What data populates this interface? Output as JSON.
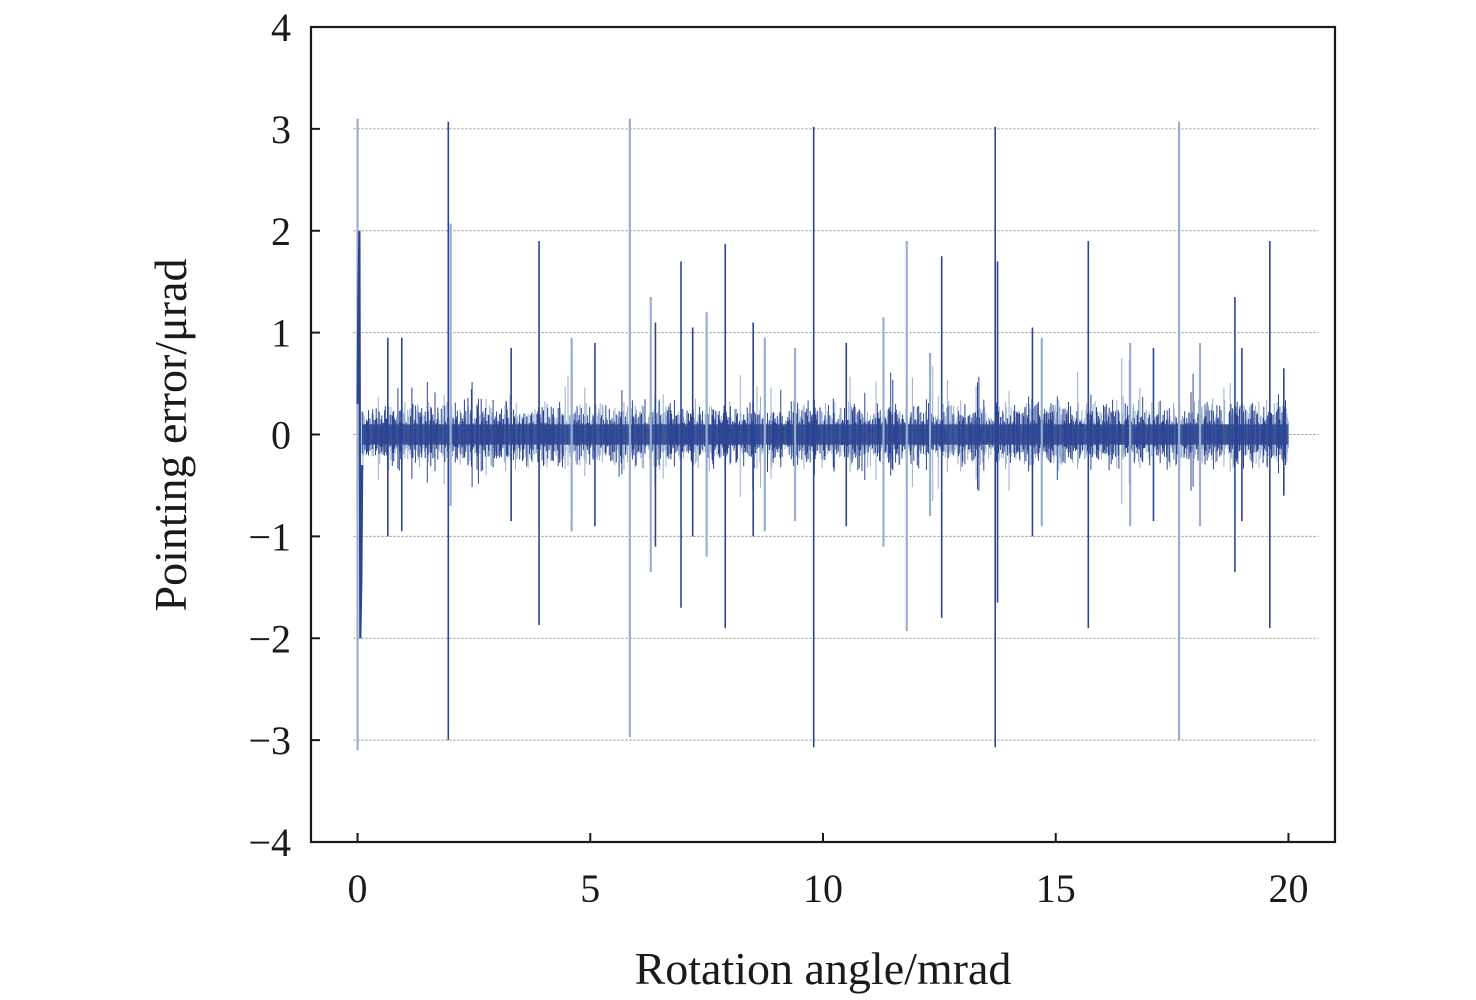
{
  "chart_data": {
    "type": "line",
    "title": "",
    "xlabel": "Rotation angle/mrad",
    "ylabel": "Pointing error/μrad",
    "xlim": [
      -1,
      21
    ],
    "ylim": [
      -4,
      4
    ],
    "x_ticks": [
      0,
      5,
      10,
      15,
      20
    ],
    "x_tick_labels": [
      "0",
      "5",
      "10",
      "15",
      "20"
    ],
    "y_ticks": [
      -4,
      -3,
      -2,
      -1,
      0,
      1,
      2,
      3,
      4
    ],
    "y_tick_labels": [
      "−4",
      "−3",
      "−2",
      "−1",
      "0",
      "1",
      "2",
      "3",
      "4"
    ],
    "grid": "horizontal dotted at y = −3, −2, −1, 0, 1, 2, 3",
    "legend": "none",
    "colors": {
      "dark": "#2c4592",
      "light": "#9aaed0",
      "axis": "#1a1a1a"
    },
    "noise": {
      "x_start": 0.1,
      "x_end": 20.0,
      "band_amplitude": 0.25
    },
    "transient": [
      {
        "x": 0.0,
        "y": 0.3
      },
      {
        "x": 0.02,
        "y": 1.45
      },
      {
        "x": 0.04,
        "y": 2.0
      },
      {
        "x": 0.06,
        "y": -2.0
      },
      {
        "x": 0.08,
        "y": -1.45
      },
      {
        "x": 0.1,
        "y": -0.3
      }
    ],
    "spikes": [
      {
        "x": 0.0,
        "y_max": 3.1,
        "y_min": -3.1,
        "tone": "light"
      },
      {
        "x": 1.95,
        "y_max": 3.07,
        "y_min": -3.0,
        "tone": "dark"
      },
      {
        "x": 5.85,
        "y_max": 3.1,
        "y_min": -2.97,
        "tone": "light"
      },
      {
        "x": 9.8,
        "y_max": 3.02,
        "y_min": -3.07,
        "tone": "dark"
      },
      {
        "x": 13.7,
        "y_max": 3.02,
        "y_min": -3.07,
        "tone": "dark"
      },
      {
        "x": 17.65,
        "y_max": 3.07,
        "y_min": -3.0,
        "tone": "light"
      },
      {
        "x": 2.0,
        "y_max": 2.07,
        "y_min": -0.7,
        "tone": "light"
      },
      {
        "x": 3.9,
        "y_max": 1.9,
        "y_min": -1.87,
        "tone": "dark"
      },
      {
        "x": 7.9,
        "y_max": 1.87,
        "y_min": -1.9,
        "tone": "dark"
      },
      {
        "x": 11.8,
        "y_max": 1.9,
        "y_min": -1.93,
        "tone": "light"
      },
      {
        "x": 12.55,
        "y_max": 1.75,
        "y_min": -1.8,
        "tone": "dark"
      },
      {
        "x": 15.7,
        "y_max": 1.9,
        "y_min": -1.9,
        "tone": "dark"
      },
      {
        "x": 19.6,
        "y_max": 1.9,
        "y_min": -1.9,
        "tone": "dark"
      },
      {
        "x": 6.95,
        "y_max": 1.7,
        "y_min": -1.7,
        "tone": "dark"
      },
      {
        "x": 6.3,
        "y_max": 1.35,
        "y_min": -1.35,
        "tone": "light"
      },
      {
        "x": 6.4,
        "y_max": 1.1,
        "y_min": -1.1,
        "tone": "dark"
      },
      {
        "x": 13.75,
        "y_max": 1.7,
        "y_min": -1.65,
        "tone": "dark"
      },
      {
        "x": 18.85,
        "y_max": 1.35,
        "y_min": -1.35,
        "tone": "dark"
      },
      {
        "x": 11.3,
        "y_max": 1.15,
        "y_min": -1.1,
        "tone": "light"
      },
      {
        "x": 7.2,
        "y_max": 1.05,
        "y_min": -1.0,
        "tone": "dark"
      },
      {
        "x": 7.5,
        "y_max": 1.2,
        "y_min": -1.2,
        "tone": "light"
      },
      {
        "x": 8.5,
        "y_max": 1.1,
        "y_min": -1.0,
        "tone": "dark"
      },
      {
        "x": 8.75,
        "y_max": 0.95,
        "y_min": -0.95,
        "tone": "light"
      },
      {
        "x": 14.5,
        "y_max": 1.05,
        "y_min": -1.0,
        "tone": "dark"
      },
      {
        "x": 14.7,
        "y_max": 0.95,
        "y_min": -0.9,
        "tone": "light"
      },
      {
        "x": 0.65,
        "y_max": 0.95,
        "y_min": -1.0,
        "tone": "dark"
      },
      {
        "x": 0.95,
        "y_max": 0.95,
        "y_min": -0.95,
        "tone": "dark"
      },
      {
        "x": 4.6,
        "y_max": 0.95,
        "y_min": -0.95,
        "tone": "light"
      },
      {
        "x": 5.1,
        "y_max": 0.9,
        "y_min": -0.9,
        "tone": "dark"
      },
      {
        "x": 3.3,
        "y_max": 0.85,
        "y_min": -0.85,
        "tone": "dark"
      },
      {
        "x": 9.4,
        "y_max": 0.85,
        "y_min": -0.85,
        "tone": "light"
      },
      {
        "x": 10.5,
        "y_max": 0.9,
        "y_min": -0.9,
        "tone": "dark"
      },
      {
        "x": 16.6,
        "y_max": 0.9,
        "y_min": -0.9,
        "tone": "light"
      },
      {
        "x": 17.1,
        "y_max": 0.85,
        "y_min": -0.85,
        "tone": "dark"
      },
      {
        "x": 18.1,
        "y_max": 0.9,
        "y_min": -0.9,
        "tone": "light"
      },
      {
        "x": 19.0,
        "y_max": 0.85,
        "y_min": -0.85,
        "tone": "dark"
      },
      {
        "x": 19.9,
        "y_max": 0.65,
        "y_min": -0.6,
        "tone": "dark"
      },
      {
        "x": 12.3,
        "y_max": 0.8,
        "y_min": -0.8,
        "tone": "light"
      }
    ]
  }
}
